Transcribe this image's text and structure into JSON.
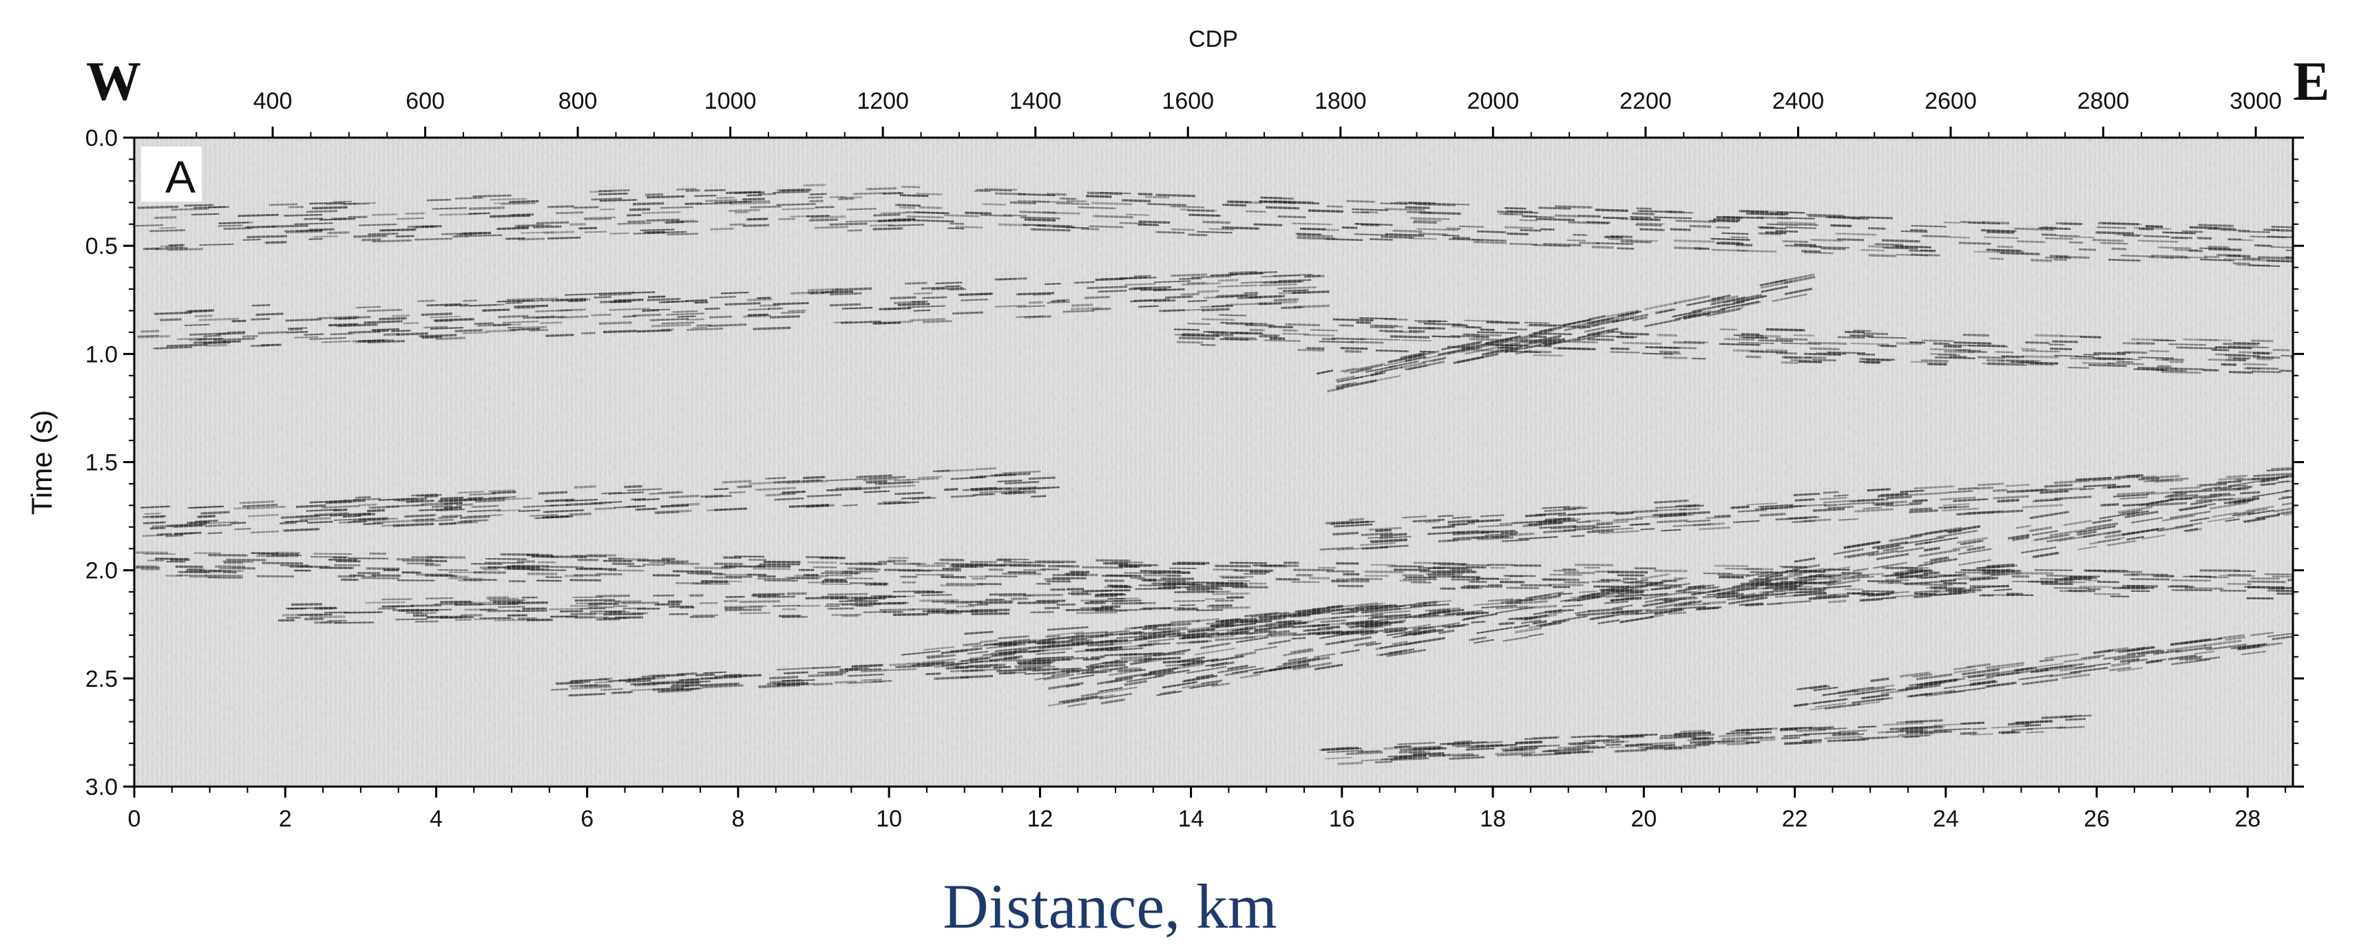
{
  "panel_label": "A",
  "orientation": {
    "left": "W",
    "right": "E"
  },
  "top_axis": {
    "title": "CDP",
    "ticks": [
      400,
      600,
      800,
      1000,
      1200,
      1400,
      1600,
      1800,
      2000,
      2200,
      2400,
      2600,
      2800,
      3000
    ]
  },
  "left_axis": {
    "title": "Time (s)",
    "ticks": [
      "0.0",
      "0.5",
      "1.0",
      "1.5",
      "2.0",
      "2.5",
      "3.0"
    ]
  },
  "bottom_axis": {
    "title": "Distance, km",
    "ticks": [
      0,
      2,
      4,
      6,
      8,
      10,
      12,
      14,
      16,
      18,
      20,
      22,
      24,
      26,
      28
    ]
  },
  "colors": {
    "background": "#ffffff",
    "section_fill": "#d9d9d9",
    "trace_ink": "#2b2b2b",
    "frame": "#000000",
    "xlabel_color": "#1f3a6b"
  }
}
